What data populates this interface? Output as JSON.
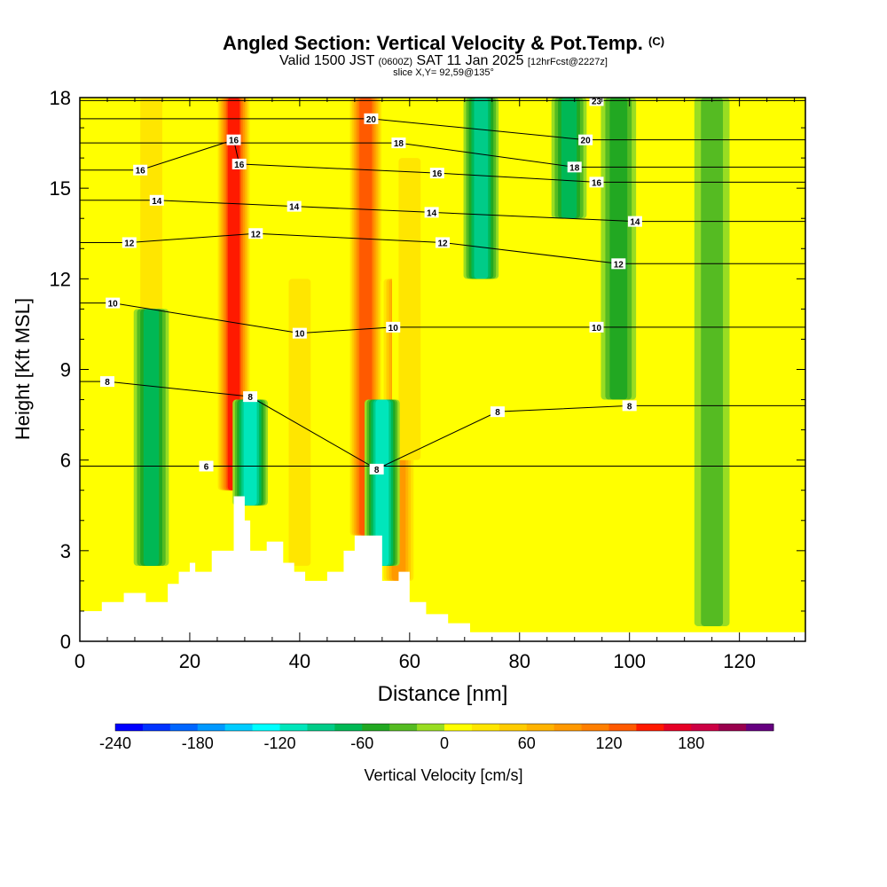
{
  "header": {
    "title": "Angled Section: Vertical Velocity & Pot.Temp.",
    "title_suffix": "(C)",
    "valid_prefix": "Valid 1500 JST",
    "valid_utc": "(0600Z)",
    "valid_date": "SAT 11 Jan 2025",
    "forecast": "[12hrFcst@2227z]",
    "slice": "slice X,Y= 92,59@135°"
  },
  "chart_data": {
    "type": "heatmap",
    "xlabel": "Distance [nm]",
    "ylabel": "Height [Kft MSL]",
    "xlim": [
      0,
      132
    ],
    "ylim": [
      0,
      18
    ],
    "x_ticks": [
      0,
      20,
      40,
      60,
      80,
      100,
      120
    ],
    "y_ticks": [
      0,
      3,
      6,
      9,
      12,
      15,
      18
    ],
    "terrain": {
      "x": [
        0,
        4,
        4,
        8,
        8,
        12,
        12,
        16,
        16,
        18,
        18,
        20,
        20,
        21,
        21,
        24,
        24,
        28,
        28,
        30,
        30,
        31,
        31,
        34,
        34,
        37,
        37,
        39,
        39,
        41,
        41,
        45,
        45,
        48,
        48,
        50,
        50,
        55,
        55,
        58,
        58,
        60,
        60,
        63,
        63,
        67,
        67,
        71,
        71,
        132
      ],
      "y": [
        1.0,
        1.0,
        1.3,
        1.3,
        1.6,
        1.6,
        1.3,
        1.3,
        1.9,
        1.9,
        2.3,
        2.3,
        2.6,
        2.6,
        2.3,
        2.3,
        3.0,
        3.0,
        4.8,
        4.8,
        4.0,
        4.0,
        3.0,
        3.0,
        3.3,
        3.3,
        2.6,
        2.6,
        2.3,
        2.3,
        2.0,
        2.0,
        2.3,
        2.3,
        3.0,
        3.0,
        3.5,
        3.5,
        2.0,
        2.0,
        2.3,
        2.3,
        1.3,
        1.3,
        0.9,
        0.9,
        0.6,
        0.6,
        0.3,
        0.3
      ]
    },
    "updrafts_cm_s": [
      {
        "x": 13,
        "base": 2.5,
        "top": 18,
        "peak": 40
      },
      {
        "x": 28,
        "base": 5.0,
        "top": 18,
        "peak": 150
      },
      {
        "x": 40,
        "base": 2.5,
        "top": 12,
        "peak": 30
      },
      {
        "x": 52,
        "base": 3.5,
        "top": 18,
        "peak": 130
      },
      {
        "x": 58,
        "base": 2.0,
        "top": 12,
        "peak": 90
      },
      {
        "x": 60,
        "base": 6.0,
        "top": 16,
        "peak": 40
      },
      {
        "x": 80,
        "base": 0.5,
        "top": 9,
        "peak": 20
      }
    ],
    "downdrafts_cm_s": [
      {
        "x": 13,
        "base": 2.5,
        "top": 11,
        "peak": -70
      },
      {
        "x": 31,
        "base": 4.5,
        "top": 8,
        "peak": -110
      },
      {
        "x": 55,
        "base": 2.5,
        "top": 8,
        "peak": -120
      },
      {
        "x": 73,
        "base": 12.0,
        "top": 18,
        "peak": -90
      },
      {
        "x": 89,
        "base": 14.0,
        "top": 18,
        "peak": -70
      },
      {
        "x": 98,
        "base": 8.0,
        "top": 18,
        "peak": -50
      },
      {
        "x": 115,
        "base": 0.5,
        "top": 18,
        "peak": -40
      }
    ],
    "pot_temp_labels": [
      {
        "text": "6",
        "x": 23,
        "y": 5.8
      },
      {
        "text": "8",
        "x": 5,
        "y": 8.6
      },
      {
        "text": "8",
        "x": 31,
        "y": 8.1
      },
      {
        "text": "8",
        "x": 54,
        "y": 5.7
      },
      {
        "text": "8",
        "x": 76,
        "y": 7.6
      },
      {
        "text": "8",
        "x": 100,
        "y": 7.8
      },
      {
        "text": "10",
        "x": 6,
        "y": 11.2
      },
      {
        "text": "10",
        "x": 40,
        "y": 10.2
      },
      {
        "text": "10",
        "x": 57,
        "y": 10.4
      },
      {
        "text": "10",
        "x": 94,
        "y": 10.4
      },
      {
        "text": "12",
        "x": 9,
        "y": 13.2
      },
      {
        "text": "12",
        "x": 32,
        "y": 13.5
      },
      {
        "text": "12",
        "x": 66,
        "y": 13.2
      },
      {
        "text": "12",
        "x": 98,
        "y": 12.5
      },
      {
        "text": "14",
        "x": 14,
        "y": 14.6
      },
      {
        "text": "14",
        "x": 39,
        "y": 14.4
      },
      {
        "text": "14",
        "x": 64,
        "y": 14.2
      },
      {
        "text": "14",
        "x": 101,
        "y": 13.9
      },
      {
        "text": "16",
        "x": 11,
        "y": 15.6
      },
      {
        "text": "16",
        "x": 28,
        "y": 16.6
      },
      {
        "text": "16",
        "x": 29,
        "y": 15.8
      },
      {
        "text": "16",
        "x": 65,
        "y": 15.5
      },
      {
        "text": "16",
        "x": 94,
        "y": 15.2
      },
      {
        "text": "18",
        "x": 58,
        "y": 16.5
      },
      {
        "text": "18",
        "x": 90,
        "y": 15.7
      },
      {
        "text": "20",
        "x": 53,
        "y": 17.3
      },
      {
        "text": "20",
        "x": 92,
        "y": 16.6
      },
      {
        "text": "23",
        "x": 94,
        "y": 17.9
      }
    ],
    "colorbar": {
      "label": "Vertical Velocity [cm/s]",
      "min": -240,
      "max": 240,
      "step": 20,
      "tick_values": [
        -240,
        -180,
        -120,
        -60,
        0,
        60,
        120,
        180
      ],
      "tick_labels": [
        "-240",
        "-180",
        "-120",
        "-60",
        "0",
        "60",
        "120",
        "180"
      ],
      "colors": [
        "#0000ff",
        "#0033ff",
        "#0066ff",
        "#0099ff",
        "#00ccff",
        "#00ffff",
        "#00e6bb",
        "#00cc88",
        "#00b855",
        "#22a822",
        "#55bb22",
        "#99dd22",
        "#ffff00",
        "#ffe600",
        "#ffcc00",
        "#ffb300",
        "#ff9900",
        "#ff7f00",
        "#ff5a00",
        "#ff1a00",
        "#e60026",
        "#cc0044",
        "#99004d",
        "#660080"
      ]
    }
  }
}
